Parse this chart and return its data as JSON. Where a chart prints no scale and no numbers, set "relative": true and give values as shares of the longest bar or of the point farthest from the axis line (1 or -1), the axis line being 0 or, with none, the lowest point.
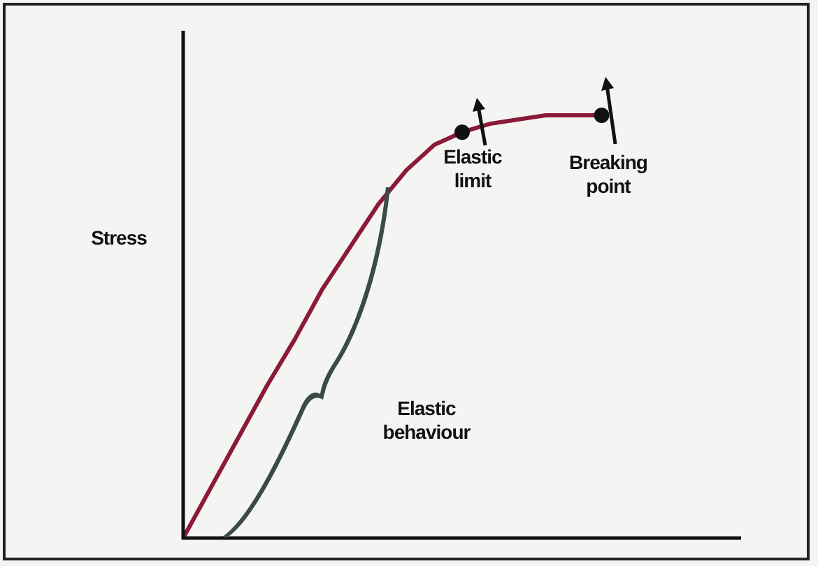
{
  "chart_data": {
    "type": "line",
    "ylabel": "Stress",
    "relative": true,
    "legend": false,
    "categories": [
      null,
      null,
      null,
      null,
      null,
      null,
      null,
      null,
      null,
      null,
      null,
      null,
      null,
      null,
      null,
      null,
      null,
      null,
      null,
      null,
      null
    ],
    "series": [
      {
        "color": "#8b1a3a",
        "marker": "none",
        "line_style": "solid",
        "values": [
          0,
          0.12,
          0.24,
          0.36,
          0.47,
          0.59,
          0.69,
          0.79,
          0.87,
          0.93,
          0.96,
          0.98,
          0.99,
          1,
          1,
          1,
          null,
          null,
          null,
          null,
          null
        ]
      }
    ],
    "annotations": [
      {
        "text": "Elastic limit",
        "y": 0.96
      },
      {
        "text": "Breaking point",
        "y": 1
      },
      "Elastic behaviour"
    ]
  }
}
